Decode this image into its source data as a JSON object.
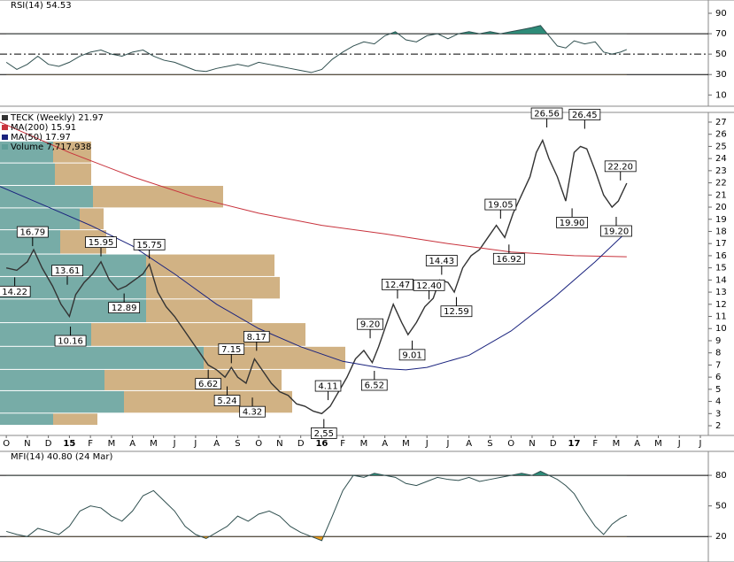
{
  "chart_data": [
    {
      "type": "line",
      "title": "RSI(14) 54.53",
      "xlim": [
        -0.3,
        34.6
      ],
      "ylim": [
        -1,
        103
      ],
      "yticks": [
        10,
        30,
        50,
        70,
        90
      ],
      "hlines": [
        {
          "value": 70,
          "style": "solid"
        },
        {
          "value": 50,
          "style": "dashdot"
        },
        {
          "value": 30,
          "style": "solid"
        }
      ],
      "fills": [
        {
          "above": 70,
          "color": "#2e8b78"
        },
        {
          "below": 30,
          "color": "#f0a020"
        }
      ],
      "x": [
        0,
        0.5,
        1,
        1.5,
        2,
        2.5,
        3,
        3.5,
        4,
        4.5,
        5,
        5.5,
        6,
        6.5,
        7,
        7.5,
        8,
        8.5,
        9,
        9.5,
        10,
        10.5,
        11,
        11.5,
        12,
        12.5,
        13,
        13.5,
        14,
        14.5,
        15,
        15.5,
        16,
        16.5,
        17,
        17.5,
        18,
        18.5,
        19,
        19.5,
        20,
        20.5,
        21,
        21.5,
        22,
        22.5,
        23,
        23.5,
        24,
        24.5,
        25,
        25.4,
        25.8,
        26.2,
        26.6,
        27,
        27.5,
        28,
        28.4,
        28.8,
        29.2,
        29.5
      ],
      "series": [
        {
          "name": "RSI",
          "color": "#2f4f4f",
          "values": [
            42,
            35,
            40,
            48,
            40,
            38,
            42,
            48,
            52,
            54,
            50,
            48,
            52,
            54,
            48,
            44,
            42,
            38,
            34,
            33,
            36,
            38,
            40,
            38,
            42,
            40,
            38,
            36,
            34,
            32,
            35,
            45,
            52,
            58,
            62,
            60,
            68,
            72,
            64,
            62,
            68,
            70,
            65,
            70,
            72,
            70,
            72,
            70,
            72,
            74,
            76,
            78,
            68,
            58,
            56,
            63,
            60,
            62,
            52,
            50,
            52,
            54.53
          ]
        }
      ]
    },
    {
      "type": "line",
      "xlim": [
        -0.3,
        34.6
      ],
      "ylim": [
        1.2,
        27.8
      ],
      "yticks": [
        2,
        3,
        4,
        5,
        6,
        7,
        8,
        9,
        10,
        11,
        12,
        13,
        14,
        15,
        16,
        17,
        18,
        19,
        20,
        21,
        22,
        23,
        24,
        25,
        26,
        27
      ],
      "categories": [
        "O",
        "N",
        "D",
        "15",
        "F",
        "M",
        "A",
        "M",
        "J",
        "J",
        "A",
        "S",
        "O",
        "N",
        "D",
        "16",
        "F",
        "M",
        "A",
        "M",
        "J",
        "J",
        "A",
        "S",
        "O",
        "N",
        "D",
        "17",
        "F",
        "M",
        "A",
        "M",
        "J",
        "J"
      ],
      "year_labels": [
        "15",
        "16",
        "17"
      ],
      "volume_by_price": {
        "name": "Volume 7,717,938",
        "xlim": [
          0,
          829
        ],
        "bins": [
          25.4,
          23.6,
          21.75,
          19.9,
          18.1,
          16.1,
          14.25,
          12.4,
          10.45,
          8.5,
          6.6,
          4.85,
          3.0,
          2.0
        ],
        "up": [
          60,
          62,
          105,
          90,
          68,
          165,
          165,
          165,
          103,
          230,
          118,
          140,
          60
        ],
        "down": [
          43,
          41,
          147,
          27,
          52,
          145,
          151,
          120,
          242,
          160,
          200,
          190,
          50
        ],
        "up_color": "#5f9e98",
        "down_color": "#c9a46e"
      },
      "series": [
        {
          "name": "TECK (Weekly) 21.97",
          "color": "#333333",
          "x": [
            0,
            0.5,
            1,
            1.3,
            1.7,
            2.2,
            2.6,
            3,
            3.3,
            3.7,
            4.1,
            4.5,
            4.9,
            5.3,
            5.7,
            6.1,
            6.5,
            6.8,
            7.2,
            7.6,
            8,
            8.4,
            8.8,
            9.2,
            9.6,
            10,
            10.4,
            10.7,
            11,
            11.4,
            11.8,
            12.2,
            12.6,
            13,
            13.4,
            13.8,
            14.2,
            14.6,
            15,
            15.4,
            15.8,
            16.2,
            16.6,
            17,
            17.4,
            17.7,
            18.1,
            18.4,
            18.8,
            19.1,
            19.5,
            19.9,
            20.3,
            20.6,
            21,
            21.3,
            21.7,
            22.1,
            22.5,
            22.9,
            23.3,
            23.7,
            24.1,
            24.5,
            24.9,
            25.2,
            25.5,
            25.8,
            26.2,
            26.6,
            27,
            27.3,
            27.6,
            28,
            28.4,
            28.8,
            29.1,
            29.5
          ],
          "values": [
            15,
            14.8,
            15.5,
            16.5,
            15,
            13.5,
            12,
            11,
            12.8,
            13.8,
            14.5,
            15.5,
            14,
            13.2,
            13.5,
            14,
            14.5,
            15.3,
            13,
            11.8,
            11,
            10,
            9,
            8,
            7,
            6.6,
            6,
            6.8,
            6,
            5.5,
            7.5,
            6.5,
            5.5,
            4.8,
            4.5,
            3.8,
            3.6,
            3.2,
            3,
            3.6,
            4.8,
            6,
            7.5,
            8.2,
            7.2,
            8.5,
            10.5,
            12,
            10.5,
            9.5,
            10.5,
            11.8,
            12.5,
            14,
            13.8,
            13,
            15,
            16,
            16.5,
            17.5,
            18.5,
            17.5,
            19.5,
            21,
            22.5,
            24.5,
            25.5,
            24,
            22.5,
            20.5,
            24.5,
            25,
            24.8,
            23,
            21,
            20,
            20.5,
            21.97
          ]
        },
        {
          "name": "MA(200) 15.91",
          "color": "#c8323c",
          "x": [
            -0.3,
            3,
            6,
            9,
            12,
            15,
            18,
            21,
            24,
            27,
            29.5
          ],
          "values": [
            27,
            24.5,
            22.5,
            20.8,
            19.5,
            18.5,
            17.8,
            17,
            16.3,
            16,
            15.91
          ]
        },
        {
          "name": "MA(50) 17.97",
          "color": "#1a237e",
          "x": [
            -0.3,
            2,
            4,
            6,
            8,
            10,
            12,
            14,
            16,
            18,
            19,
            20,
            22,
            24,
            26,
            28,
            29.5
          ],
          "values": [
            21.7,
            20,
            18.5,
            16.8,
            14.5,
            12,
            10,
            8.5,
            7.3,
            6.7,
            6.6,
            6.8,
            7.8,
            9.8,
            12.5,
            15.5,
            17.97
          ]
        }
      ],
      "annotations": [
        {
          "x": 1.25,
          "value": 16.79,
          "label": "16.79",
          "pos": "above"
        },
        {
          "x": 0.4,
          "value": 14.22,
          "label": "14.22",
          "pos": "below"
        },
        {
          "x": 2.9,
          "value": 13.61,
          "label": "13.61",
          "pos": "above"
        },
        {
          "x": 3.05,
          "value": 10.16,
          "label": "10.16",
          "pos": "below"
        },
        {
          "x": 4.5,
          "value": 15.95,
          "label": "15.95",
          "pos": "above"
        },
        {
          "x": 5.6,
          "value": 12.89,
          "label": "12.89",
          "pos": "below"
        },
        {
          "x": 6.8,
          "value": 15.75,
          "label": "15.75",
          "pos": "above"
        },
        {
          "x": 9.6,
          "value": 6.62,
          "label": "6.62",
          "pos": "below"
        },
        {
          "x": 10.7,
          "value": 7.15,
          "label": "7.15",
          "pos": "above"
        },
        {
          "x": 10.5,
          "value": 5.24,
          "label": "5.24",
          "pos": "below"
        },
        {
          "x": 11.9,
          "value": 8.17,
          "label": "8.17",
          "pos": "above"
        },
        {
          "x": 11.7,
          "value": 4.32,
          "label": "4.32",
          "pos": "below"
        },
        {
          "x": 15.3,
          "value": 4.11,
          "label": "4.11",
          "pos": "above"
        },
        {
          "x": 15.1,
          "value": 2.55,
          "label": "2.55",
          "pos": "below"
        },
        {
          "x": 17.3,
          "value": 9.2,
          "label": "9.20",
          "pos": "above"
        },
        {
          "x": 17.5,
          "value": 6.52,
          "label": "6.52",
          "pos": "below"
        },
        {
          "x": 18.6,
          "value": 12.47,
          "label": "12.47",
          "pos": "above"
        },
        {
          "x": 19.3,
          "value": 9.01,
          "label": "9.01",
          "pos": "below"
        },
        {
          "x": 20.1,
          "value": 12.4,
          "label": "12.40",
          "pos": "above"
        },
        {
          "x": 20.7,
          "value": 14.43,
          "label": "14.43",
          "pos": "above"
        },
        {
          "x": 21.4,
          "value": 12.59,
          "label": "12.59",
          "pos": "below"
        },
        {
          "x": 23.5,
          "value": 19.05,
          "label": "19.05",
          "pos": "above"
        },
        {
          "x": 23.9,
          "value": 16.92,
          "label": "16.92",
          "pos": "below"
        },
        {
          "x": 25.7,
          "value": 26.56,
          "label": "26.56",
          "pos": "above"
        },
        {
          "x": 26.9,
          "value": 19.9,
          "label": "19.90",
          "pos": "below"
        },
        {
          "x": 27.5,
          "value": 26.45,
          "label": "26.45",
          "pos": "above"
        },
        {
          "x": 29.2,
          "value": 22.2,
          "label": "22.20",
          "pos": "above"
        },
        {
          "x": 29.0,
          "value": 19.2,
          "label": "19.20",
          "pos": "below"
        }
      ]
    },
    {
      "type": "line",
      "title": "MFI(14) 40.80 (24 Mar)",
      "xlim": [
        -0.3,
        34.6
      ],
      "ylim": [
        -5,
        103.5
      ],
      "yticks": [
        20,
        50,
        80
      ],
      "hlines": [
        {
          "value": 80,
          "style": "solid"
        },
        {
          "value": 20,
          "style": "solid"
        }
      ],
      "fills": [
        {
          "above": 80,
          "color": "#2e8b78"
        },
        {
          "below": 20,
          "color": "#f0a020"
        }
      ],
      "x": [
        0,
        0.5,
        1,
        1.5,
        2,
        2.5,
        3,
        3.5,
        4,
        4.5,
        5,
        5.5,
        6,
        6.5,
        7,
        7.5,
        8,
        8.5,
        9,
        9.5,
        10,
        10.5,
        11,
        11.5,
        12,
        12.5,
        13,
        13.5,
        14,
        14.5,
        15,
        15.5,
        16,
        16.5,
        17,
        17.5,
        18,
        18.5,
        19,
        19.5,
        20,
        20.5,
        21,
        21.5,
        22,
        22.5,
        23,
        23.5,
        24,
        24.5,
        25,
        25.4,
        25.8,
        26.2,
        26.6,
        27,
        27.5,
        28,
        28.4,
        28.8,
        29.2,
        29.5
      ],
      "series": [
        {
          "name": "MFI",
          "color": "#2f4f4f",
          "values": [
            25,
            22,
            20,
            28,
            25,
            22,
            30,
            45,
            50,
            48,
            40,
            35,
            45,
            60,
            65,
            55,
            45,
            30,
            22,
            18,
            24,
            30,
            40,
            35,
            42,
            45,
            40,
            30,
            24,
            20,
            16,
            40,
            65,
            80,
            78,
            82,
            80,
            78,
            72,
            70,
            74,
            78,
            76,
            75,
            78,
            74,
            76,
            78,
            80,
            82,
            80,
            84,
            80,
            76,
            70,
            62,
            45,
            30,
            22,
            32,
            38,
            40.8
          ]
        }
      ]
    }
  ]
}
